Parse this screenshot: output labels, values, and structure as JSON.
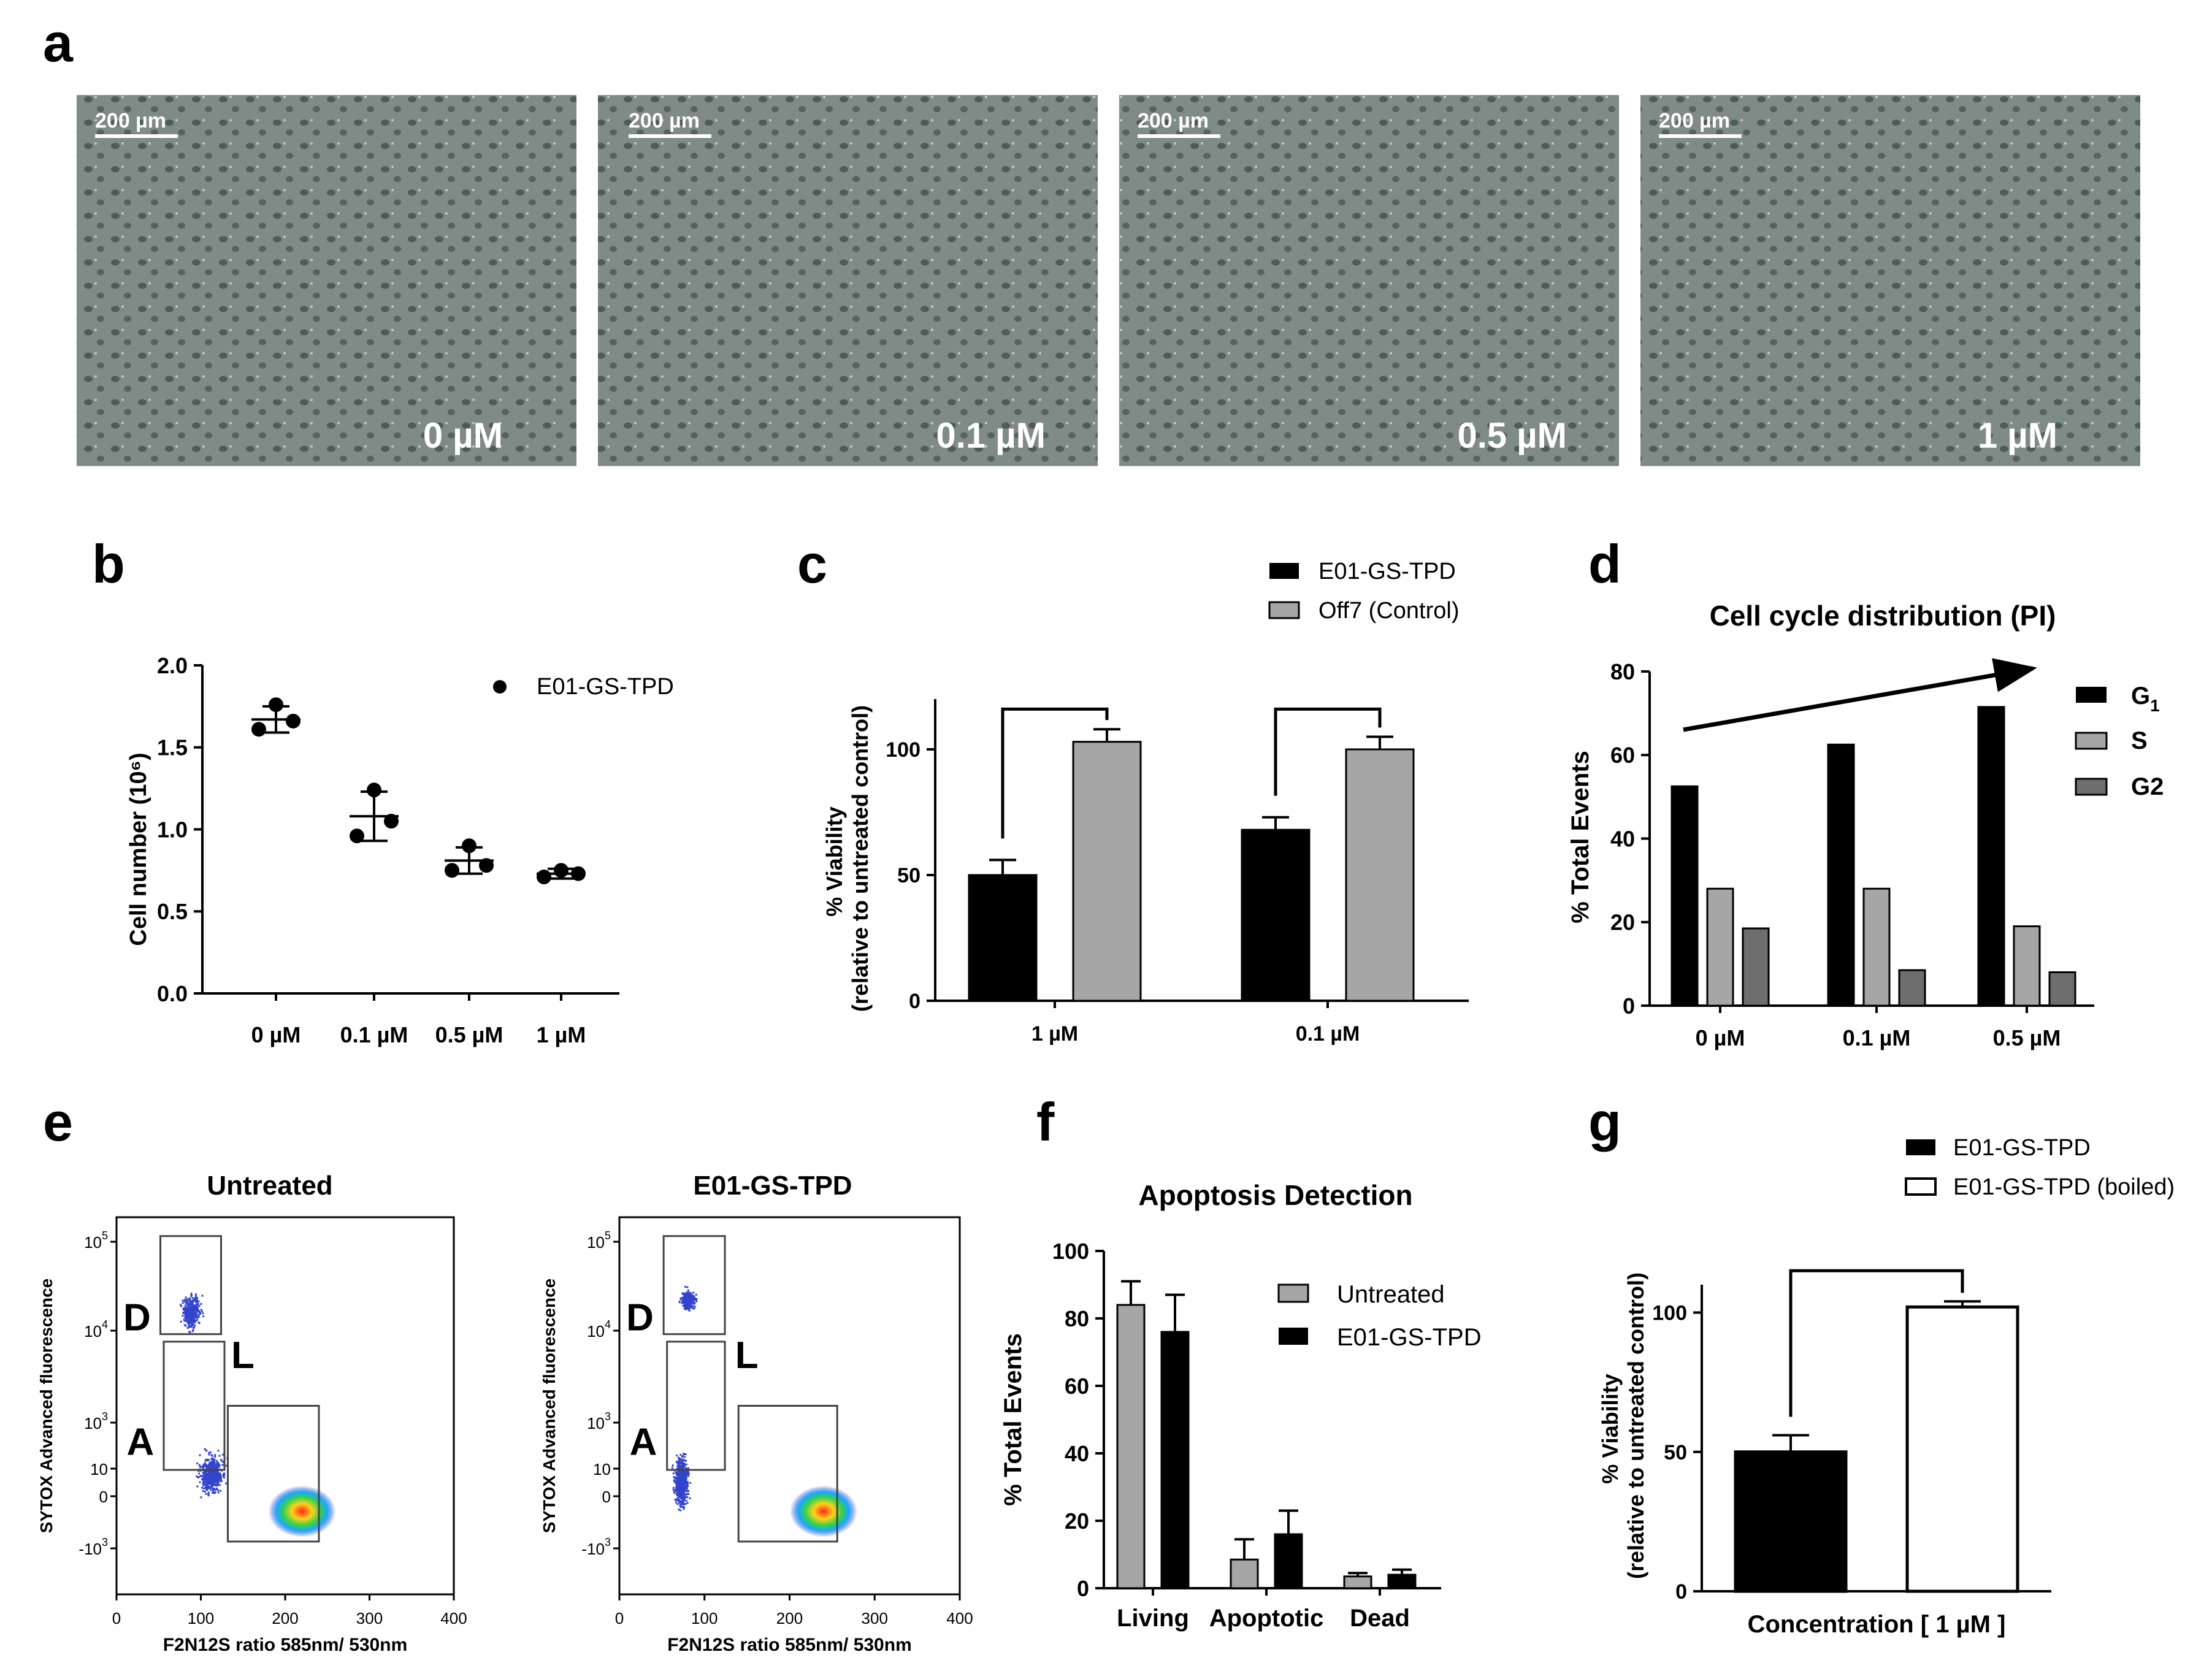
{
  "panels": {
    "a": {
      "letter": "a"
    },
    "b": {
      "letter": "b"
    },
    "c": {
      "letter": "c"
    },
    "d": {
      "letter": "d"
    },
    "e": {
      "letter": "e"
    },
    "f": {
      "letter": "f"
    },
    "g": {
      "letter": "g"
    }
  },
  "micrographs": [
    {
      "scale_label": "200 µm",
      "condition": "0 µM"
    },
    {
      "scale_label": "200 µm",
      "condition": "0.1 µM"
    },
    {
      "scale_label": "200 µm",
      "condition": "0.5 µM"
    },
    {
      "scale_label": "200 µm",
      "condition": "1 µM"
    }
  ],
  "colors": {
    "black": "#000000",
    "gray": "#a6a6a6",
    "dark_gray": "#6e6e6e",
    "white": "#ffffff",
    "micrograph_bg": "#7d8a86",
    "scatter_blue": "#3344cc",
    "scatter_hot": "#ff3b1f"
  },
  "chart_data": [
    {
      "panel": "b",
      "type": "scatter",
      "ylabel_main": "Cell number",
      "ylabel_unit": "(10⁶)",
      "ylim": [
        0.0,
        2.0
      ],
      "y_ticks": [
        "0.0",
        "0.5",
        "1.0",
        "1.5",
        "2.0"
      ],
      "categories": [
        "0 µM",
        "0.1 µM",
        "0.5 µM",
        "1 µM"
      ],
      "legend": [
        "E01-GS-TPD"
      ],
      "points": [
        [
          1.61,
          1.76,
          1.66
        ],
        [
          0.96,
          1.24,
          1.05
        ],
        [
          0.75,
          0.9,
          0.78
        ],
        [
          0.71,
          0.75,
          0.73
        ]
      ],
      "mean": [
        1.67,
        1.08,
        0.81,
        0.73
      ],
      "sd": [
        0.08,
        0.15,
        0.08,
        0.03
      ]
    },
    {
      "panel": "c",
      "type": "bar",
      "ylabel_line1": "% Viability",
      "ylabel_line2": "(relative to untreated control)",
      "ylim": [
        0,
        120
      ],
      "y_ticks": [
        "0",
        "50",
        "100"
      ],
      "categories": [
        "1 µM",
        "0.1 µM"
      ],
      "series": [
        {
          "name": "E01-GS-TPD",
          "values": [
            50,
            68
          ],
          "err": [
            6,
            5
          ]
        },
        {
          "name": "Off7 (Control)",
          "values": [
            103,
            100
          ],
          "err": [
            5,
            5
          ]
        }
      ],
      "significance": [
        "*",
        "*"
      ]
    },
    {
      "panel": "d",
      "type": "bar",
      "title": "Cell cycle distribution (PI)",
      "ylabel": "% Total Events",
      "ylim": [
        0,
        80
      ],
      "y_ticks": [
        "0",
        "20",
        "40",
        "60",
        "80"
      ],
      "categories": [
        "0 µM",
        "0.1 µM",
        "0.5 µM"
      ],
      "series": [
        {
          "name": "G",
          "sub": "1",
          "values": [
            52.5,
            62.5,
            71.5
          ]
        },
        {
          "name": "S",
          "sub": "",
          "values": [
            28,
            28,
            19
          ]
        },
        {
          "name": "G2",
          "sub": "",
          "values": [
            18.5,
            8.5,
            8
          ]
        }
      ]
    },
    {
      "panel": "e",
      "type": "scatter",
      "plots": [
        {
          "title": "Untreated"
        },
        {
          "title": "E01-GS-TPD"
        }
      ],
      "xlabel": "F2N12S ratio 585nm/ 530nm",
      "ylabel": "SYTOX Advanced fluorescence",
      "x_ticks": [
        "0",
        "100",
        "200",
        "300",
        "400"
      ],
      "y_ticks": [
        "10",
        "10",
        "10",
        "10",
        "0",
        "-10"
      ],
      "y_exps": [
        "5",
        "4",
        "3",
        "",
        "",
        "3"
      ],
      "gates": [
        "D",
        "L",
        "A"
      ]
    },
    {
      "panel": "f",
      "type": "bar",
      "title": "Apoptosis Detection",
      "ylabel": "% Total Events",
      "ylim": [
        0,
        100
      ],
      "y_ticks": [
        "0",
        "20",
        "40",
        "60",
        "80",
        "100"
      ],
      "categories": [
        "Living",
        "Apoptotic",
        "Dead"
      ],
      "series": [
        {
          "name": "Untreated",
          "values": [
            84,
            8.5,
            3.5
          ],
          "err": [
            7,
            6,
            1
          ]
        },
        {
          "name": "E01-GS-TPD",
          "values": [
            76,
            16,
            4
          ],
          "err": [
            11,
            7,
            1.5
          ]
        }
      ]
    },
    {
      "panel": "g",
      "type": "bar",
      "ylabel_line1": "% Viability",
      "ylabel_line2": "(relative to untreated control)",
      "xlabel": "Concentration [ 1 µM ]",
      "ylim": [
        0,
        110
      ],
      "y_ticks": [
        "0",
        "50",
        "100"
      ],
      "series": [
        {
          "name": "E01-GS-TPD",
          "values": [
            50
          ],
          "err": [
            6
          ]
        },
        {
          "name": "E01-GS-TPD (boiled)",
          "values": [
            102
          ],
          "err": [
            2
          ]
        }
      ],
      "significance": [
        "*"
      ]
    }
  ]
}
